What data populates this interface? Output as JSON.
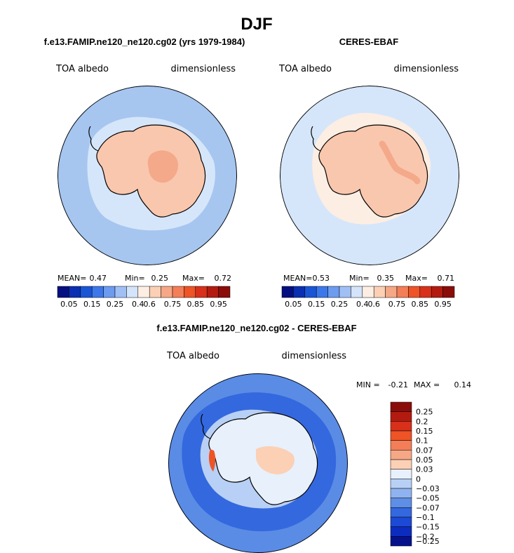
{
  "figure": {
    "main_title": "DJF",
    "colors": {
      "ocean_ring": "#a6c6f0",
      "ocean_light": "#d6e6fa",
      "land_warm": "#f9c7ad",
      "land_warmer": "#f4a98a",
      "diff_base": "#5a8ce6"
    }
  },
  "chart_data": [
    {
      "type": "heatmap",
      "projection": "south-polar-stereographic",
      "title": "f.e13.FAMIP.ne120_ne120.cg02 (yrs 1979-1984)",
      "left_label": "TOA albedo",
      "right_label": "dimensionless",
      "stats": {
        "mean_label": "MEAN=",
        "mean": "0.47",
        "min_label": "Min=",
        "min": "0.25",
        "max_label": "Max=",
        "max": "0.72"
      },
      "colorbar_ticks": [
        "0.05",
        "0.15",
        "0.25",
        "0.4",
        "0.6",
        "0.75",
        "0.85",
        "0.95"
      ],
      "colorbar_colors": [
        "#050f80",
        "#0a2fb0",
        "#1a55d6",
        "#3c78ea",
        "#6c9bf0",
        "#a0c0f5",
        "#d4e4fa",
        "#fdeee3",
        "#fbd0b5",
        "#f6a785",
        "#f37e58",
        "#ee5426",
        "#d8301a",
        "#b41b10",
        "#8a0d0a"
      ]
    },
    {
      "type": "heatmap",
      "projection": "south-polar-stereographic",
      "title": "CERES-EBAF",
      "left_label": "TOA albedo",
      "right_label": "dimensionless",
      "stats": {
        "mean_label": "MEAN=",
        "mean": "0.53",
        "min_label": "Min=",
        "min": "0.35",
        "max_label": "Max=",
        "max": "0.71"
      },
      "colorbar_ticks": [
        "0.05",
        "0.15",
        "0.25",
        "0.4",
        "0.6",
        "0.75",
        "0.85",
        "0.95"
      ],
      "colorbar_colors": [
        "#050f80",
        "#0a2fb0",
        "#1a55d6",
        "#3c78ea",
        "#6c9bf0",
        "#a0c0f5",
        "#d4e4fa",
        "#fdeee3",
        "#fbd0b5",
        "#f6a785",
        "#f37e58",
        "#ee5426",
        "#d8301a",
        "#b41b10",
        "#8a0d0a"
      ]
    },
    {
      "type": "heatmap",
      "projection": "south-polar-stereographic",
      "title": "f.e13.FAMIP.ne120_ne120.cg02 - CERES-EBAF",
      "left_label": "TOA albedo",
      "right_label": "dimensionless",
      "stats": {
        "min_label": "MIN =",
        "min": "-0.21",
        "max_label": "MAX =",
        "max": "0.14"
      },
      "colorbar_ticks": [
        "0.25",
        "0.2",
        "0.15",
        "0.1",
        "0.07",
        "0.05",
        "0.03",
        "0",
        "−0.03",
        "−0.05",
        "−0.07",
        "−0.1",
        "−0.15",
        "−0.2",
        "−0.25"
      ],
      "colorbar_colors": [
        "#8a0d0a",
        "#b41b10",
        "#d8301a",
        "#ee5426",
        "#f37e58",
        "#f6a785",
        "#fbd0b5",
        "#e8f0fb",
        "#b8d0f5",
        "#8fb2f0",
        "#5e8ee6",
        "#3468de",
        "#1c4ad6",
        "#0c2cc0",
        "#06128c"
      ]
    }
  ]
}
